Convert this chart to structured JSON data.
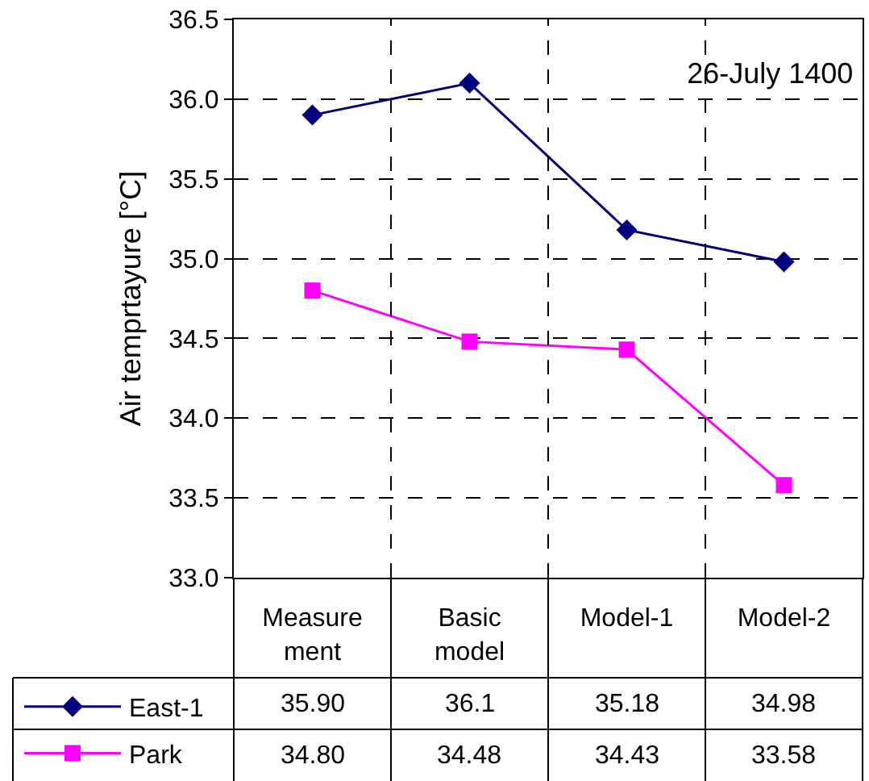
{
  "chart_data": {
    "type": "line",
    "title": "26-July 1400",
    "ylabel": "Air temprtayure [°C]",
    "categories": [
      "Measure\nment",
      "Basic\nmodel",
      "Model-1",
      "Model-2"
    ],
    "series": [
      {
        "name": "East-1",
        "color": "#000080",
        "marker": "diamond",
        "values": [
          35.9,
          36.1,
          35.18,
          34.98
        ],
        "value_labels": [
          "35.90",
          "36.1",
          "35.18",
          "34.98"
        ]
      },
      {
        "name": "Park",
        "color": "#ff00ff",
        "marker": "square",
        "values": [
          34.8,
          34.48,
          34.43,
          33.58
        ],
        "value_labels": [
          "34.80",
          "34.48",
          "34.43",
          "33.58"
        ]
      }
    ],
    "ylim": [
      33.0,
      36.5
    ],
    "yticks": [
      {
        "value": 33.0,
        "label": "33.0"
      },
      {
        "value": 33.5,
        "label": "33.5"
      },
      {
        "value": 34.0,
        "label": "34.0"
      },
      {
        "value": 34.5,
        "label": "34.5"
      },
      {
        "value": 35.0,
        "label": "35.0"
      },
      {
        "value": 35.5,
        "label": "35.5"
      },
      {
        "value": 36.0,
        "label": "36.0"
      },
      {
        "value": 36.5,
        "label": "36.5"
      }
    ],
    "grid": true,
    "legend": "bottom left",
    "line_style": "solid"
  }
}
